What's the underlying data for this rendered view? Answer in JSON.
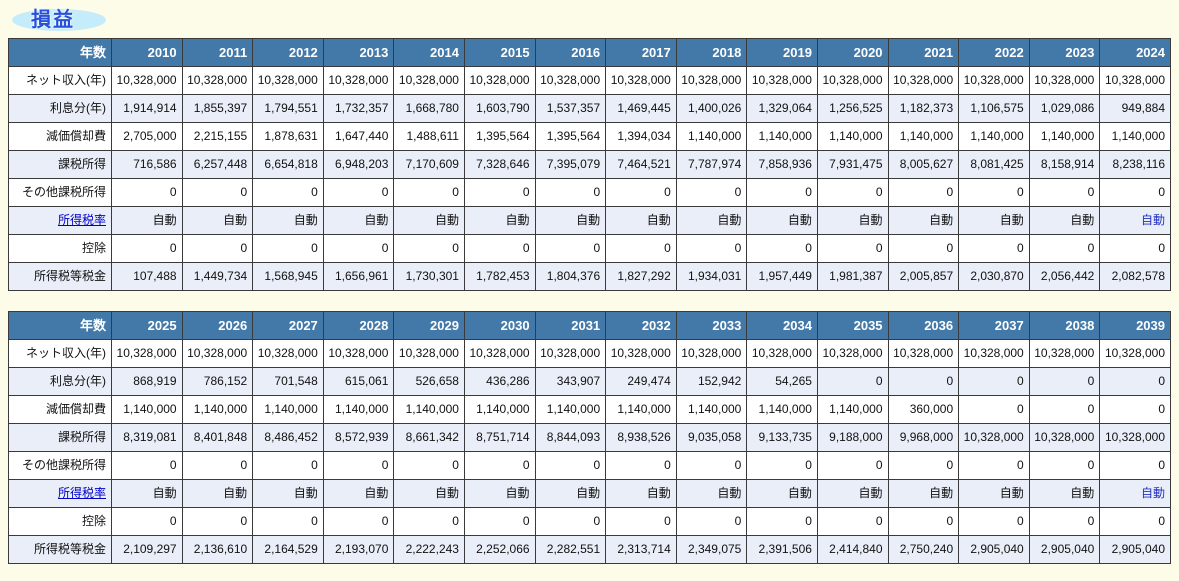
{
  "page": {
    "title": "損益"
  },
  "colors": {
    "page_bg": "#fcfce8",
    "header_bg": "#4379a9",
    "header_text": "#ffffff",
    "alt_row_bg": "#e9eef8",
    "cell_border": "#3a3a3a",
    "link": "#0000cc",
    "auto_highlight": "#2533c0",
    "title_text": "#2b50d8",
    "title_ellipse": "#c5ecfa"
  },
  "labels": {
    "year_header": "年数",
    "auto_value": "自動"
  },
  "tables": [
    {
      "years": [
        "2010",
        "2011",
        "2012",
        "2013",
        "2014",
        "2015",
        "2016",
        "2017",
        "2018",
        "2019",
        "2020",
        "2021",
        "2022",
        "2023",
        "2024"
      ],
      "rows": [
        {
          "label": "ネット収入(年)",
          "link": false,
          "values": [
            "10,328,000",
            "10,328,000",
            "10,328,000",
            "10,328,000",
            "10,328,000",
            "10,328,000",
            "10,328,000",
            "10,328,000",
            "10,328,000",
            "10,328,000",
            "10,328,000",
            "10,328,000",
            "10,328,000",
            "10,328,000",
            "10,328,000"
          ]
        },
        {
          "label": "利息分(年)",
          "link": false,
          "values": [
            "1,914,914",
            "1,855,397",
            "1,794,551",
            "1,732,357",
            "1,668,780",
            "1,603,790",
            "1,537,357",
            "1,469,445",
            "1,400,026",
            "1,329,064",
            "1,256,525",
            "1,182,373",
            "1,106,575",
            "1,029,086",
            "949,884"
          ]
        },
        {
          "label": "減価償却費",
          "link": false,
          "values": [
            "2,705,000",
            "2,215,155",
            "1,878,631",
            "1,647,440",
            "1,488,611",
            "1,395,564",
            "1,395,564",
            "1,394,034",
            "1,140,000",
            "1,140,000",
            "1,140,000",
            "1,140,000",
            "1,140,000",
            "1,140,000",
            "1,140,000"
          ]
        },
        {
          "label": "課税所得",
          "link": false,
          "values": [
            "716,586",
            "6,257,448",
            "6,654,818",
            "6,948,203",
            "7,170,609",
            "7,328,646",
            "7,395,079",
            "7,464,521",
            "7,787,974",
            "7,858,936",
            "7,931,475",
            "8,005,627",
            "8,081,425",
            "8,158,914",
            "8,238,116"
          ]
        },
        {
          "label": "その他課税所得",
          "link": false,
          "values": [
            "0",
            "0",
            "0",
            "0",
            "0",
            "0",
            "0",
            "0",
            "0",
            "0",
            "0",
            "0",
            "0",
            "0",
            "0"
          ]
        },
        {
          "label": "所得税率",
          "link": true,
          "values": [
            "自動",
            "自動",
            "自動",
            "自動",
            "自動",
            "自動",
            "自動",
            "自動",
            "自動",
            "自動",
            "自動",
            "自動",
            "自動",
            "自動",
            "自動"
          ]
        },
        {
          "label": "控除",
          "link": false,
          "values": [
            "0",
            "0",
            "0",
            "0",
            "0",
            "0",
            "0",
            "0",
            "0",
            "0",
            "0",
            "0",
            "0",
            "0",
            "0"
          ]
        },
        {
          "label": "所得税等税金",
          "link": false,
          "values": [
            "107,488",
            "1,449,734",
            "1,568,945",
            "1,656,961",
            "1,730,301",
            "1,782,453",
            "1,804,376",
            "1,827,292",
            "1,934,031",
            "1,957,449",
            "1,981,387",
            "2,005,857",
            "2,030,870",
            "2,056,442",
            "2,082,578"
          ]
        }
      ]
    },
    {
      "years": [
        "2025",
        "2026",
        "2027",
        "2028",
        "2029",
        "2030",
        "2031",
        "2032",
        "2033",
        "2034",
        "2035",
        "2036",
        "2037",
        "2038",
        "2039"
      ],
      "rows": [
        {
          "label": "ネット収入(年)",
          "link": false,
          "values": [
            "10,328,000",
            "10,328,000",
            "10,328,000",
            "10,328,000",
            "10,328,000",
            "10,328,000",
            "10,328,000",
            "10,328,000",
            "10,328,000",
            "10,328,000",
            "10,328,000",
            "10,328,000",
            "10,328,000",
            "10,328,000",
            "10,328,000"
          ]
        },
        {
          "label": "利息分(年)",
          "link": false,
          "values": [
            "868,919",
            "786,152",
            "701,548",
            "615,061",
            "526,658",
            "436,286",
            "343,907",
            "249,474",
            "152,942",
            "54,265",
            "0",
            "0",
            "0",
            "0",
            "0"
          ]
        },
        {
          "label": "減価償却費",
          "link": false,
          "values": [
            "1,140,000",
            "1,140,000",
            "1,140,000",
            "1,140,000",
            "1,140,000",
            "1,140,000",
            "1,140,000",
            "1,140,000",
            "1,140,000",
            "1,140,000",
            "1,140,000",
            "360,000",
            "0",
            "0",
            "0"
          ]
        },
        {
          "label": "課税所得",
          "link": false,
          "values": [
            "8,319,081",
            "8,401,848",
            "8,486,452",
            "8,572,939",
            "8,661,342",
            "8,751,714",
            "8,844,093",
            "8,938,526",
            "9,035,058",
            "9,133,735",
            "9,188,000",
            "9,968,000",
            "10,328,000",
            "10,328,000",
            "10,328,000"
          ]
        },
        {
          "label": "その他課税所得",
          "link": false,
          "values": [
            "0",
            "0",
            "0",
            "0",
            "0",
            "0",
            "0",
            "0",
            "0",
            "0",
            "0",
            "0",
            "0",
            "0",
            "0"
          ]
        },
        {
          "label": "所得税率",
          "link": true,
          "values": [
            "自動",
            "自動",
            "自動",
            "自動",
            "自動",
            "自動",
            "自動",
            "自動",
            "自動",
            "自動",
            "自動",
            "自動",
            "自動",
            "自動",
            "自動"
          ]
        },
        {
          "label": "控除",
          "link": false,
          "values": [
            "0",
            "0",
            "0",
            "0",
            "0",
            "0",
            "0",
            "0",
            "0",
            "0",
            "0",
            "0",
            "0",
            "0",
            "0"
          ]
        },
        {
          "label": "所得税等税金",
          "link": false,
          "values": [
            "2,109,297",
            "2,136,610",
            "2,164,529",
            "2,193,070",
            "2,222,243",
            "2,252,066",
            "2,282,551",
            "2,313,714",
            "2,349,075",
            "2,391,506",
            "2,414,840",
            "2,750,240",
            "2,905,040",
            "2,905,040",
            "2,905,040"
          ]
        }
      ]
    }
  ]
}
